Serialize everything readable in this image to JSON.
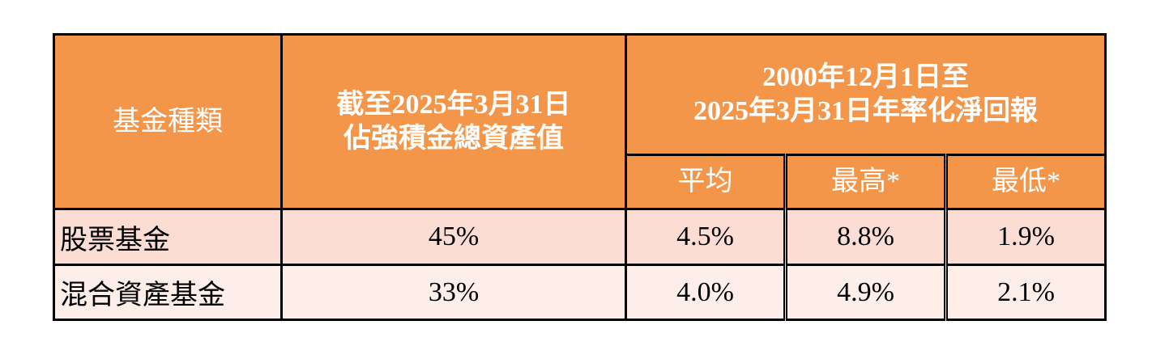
{
  "table": {
    "header": {
      "fund_type": "基金種類",
      "asset_share": [
        "截至2025年3月31日",
        "佔強積金總資產值"
      ],
      "return_period": [
        "2000年12月1日至",
        "2025年3月31日年率化淨回報"
      ],
      "subheaders": [
        "平均",
        "最高*",
        "最低*"
      ]
    },
    "rows": [
      [
        "股票基金",
        "45%",
        "4.5%",
        "8.8%",
        "1.9%"
      ],
      [
        "混合資產基金",
        "33%",
        "4.0%",
        "4.9%",
        "2.1%"
      ]
    ]
  }
}
